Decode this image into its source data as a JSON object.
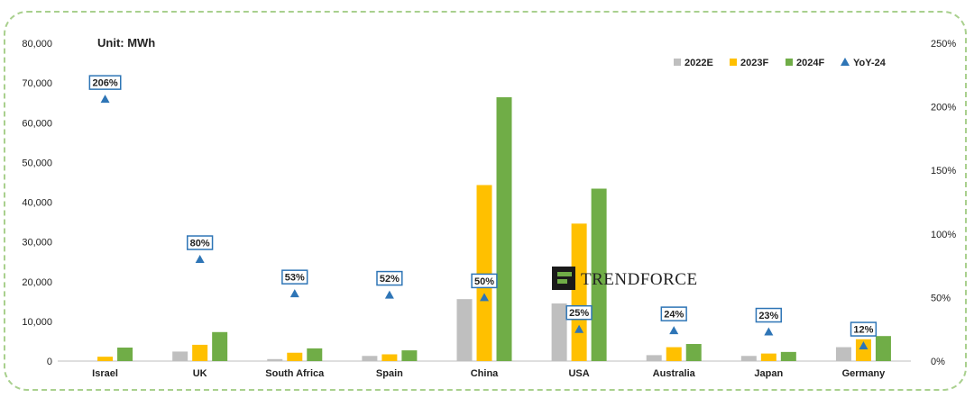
{
  "chart_data": {
    "type": "bar",
    "unit_label": "Unit: MWh",
    "categories": [
      "Israel",
      "UK",
      "South Africa",
      "Spain",
      "China",
      "USA",
      "Australia",
      "Japan",
      "Germany"
    ],
    "series": [
      {
        "name": "2022E",
        "color": "#bfbfbf",
        "values": [
          0,
          2400,
          500,
          1300,
          15600,
          14500,
          1500,
          1300,
          3500
        ]
      },
      {
        "name": "2023F",
        "color": "#ffc000",
        "values": [
          1100,
          4100,
          2100,
          1700,
          44300,
          34600,
          3500,
          1900,
          5500
        ]
      },
      {
        "name": "2024F",
        "color": "#70ad47",
        "values": [
          3400,
          7300,
          3200,
          2700,
          66400,
          43400,
          4300,
          2300,
          6300
        ]
      }
    ],
    "yoy": {
      "name": "YoY-24",
      "color": "#2e75b6",
      "values": [
        206,
        80,
        53,
        52,
        50,
        25,
        24,
        23,
        12
      ],
      "labels": [
        "206%",
        "80%",
        "53%",
        "52%",
        "50%",
        "25%",
        "24%",
        "23%",
        "12%"
      ]
    },
    "y_left": {
      "min": 0,
      "max": 80000,
      "ticks": [
        "0",
        "10,000",
        "20,000",
        "30,000",
        "40,000",
        "50,000",
        "60,000",
        "70,000",
        "80,000"
      ]
    },
    "y_right": {
      "min": 0,
      "max": 250,
      "ticks": [
        "0%",
        "50%",
        "100%",
        "150%",
        "200%",
        "250%"
      ]
    },
    "legend_position": "top-right",
    "watermark": "TRENDFORCE"
  }
}
